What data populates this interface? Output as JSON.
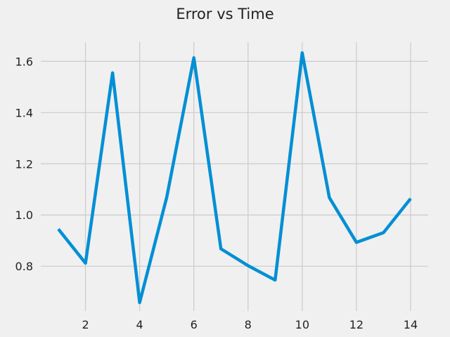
{
  "chart_data": {
    "type": "line",
    "title": "Error vs Time",
    "xlabel": "",
    "ylabel": "",
    "xlim": [
      0.35,
      14.65
    ],
    "ylim": [
      0.625,
      1.675
    ],
    "xticks": [
      2,
      4,
      6,
      8,
      10,
      12,
      14
    ],
    "xtick_labels": [
      "2",
      "4",
      "6",
      "8",
      "10",
      "12",
      "14"
    ],
    "yticks": [
      0.8,
      1.0,
      1.2,
      1.4,
      1.6
    ],
    "ytick_labels": [
      "0.8",
      "1.0",
      "1.2",
      "1.4",
      "1.6"
    ],
    "grid": true,
    "legend": "none",
    "series": [
      {
        "color": "#008fd5",
        "x": [
          1,
          2,
          3,
          4,
          5,
          6,
          7,
          8,
          9,
          10,
          11,
          12,
          13,
          14
        ],
        "y": [
          0.945,
          0.812,
          1.555,
          0.658,
          1.07,
          1.614,
          0.868,
          0.802,
          0.746,
          1.633,
          1.068,
          0.893,
          0.931,
          1.064
        ]
      }
    ]
  }
}
